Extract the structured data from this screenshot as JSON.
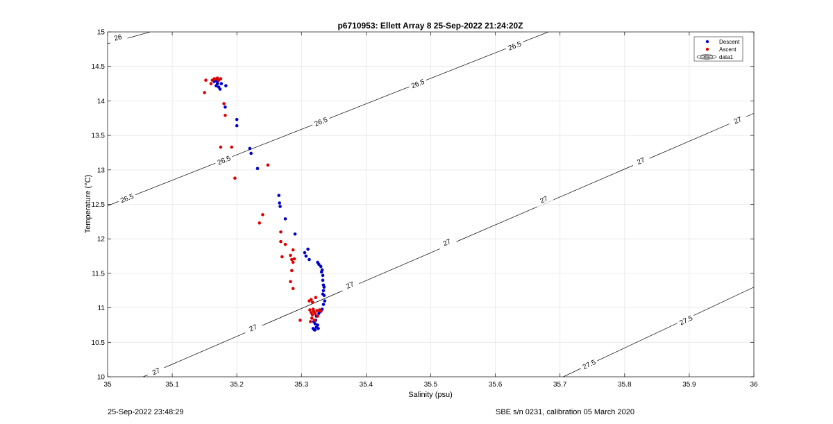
{
  "chart_data": {
    "type": "scatter",
    "title": "p6710953: Ellett Array 8 25-Sep-2022 21:24:20Z",
    "xlabel": "Salinity (psu)",
    "ylabel": "Temperature (°C)",
    "xlim": [
      35,
      36
    ],
    "ylim": [
      10,
      15
    ],
    "xticks": [
      "35",
      "35.1",
      "35.2",
      "35.3",
      "35.4",
      "35.5",
      "35.6",
      "35.7",
      "35.8",
      "35.9",
      "36"
    ],
    "yticks": [
      "10",
      "10.5",
      "11",
      "11.5",
      "12",
      "12.5",
      "13",
      "13.5",
      "14",
      "14.5",
      "15"
    ],
    "grid": true,
    "legend_position": "top-right",
    "legend": [
      "Descent",
      "Ascent",
      "data1"
    ],
    "series": [
      {
        "name": "Descent",
        "color": "#0000cc",
        "points": [
          [
            35.166,
            14.3
          ],
          [
            35.17,
            14.25
          ],
          [
            35.172,
            14.2
          ],
          [
            35.168,
            14.22
          ],
          [
            35.174,
            14.17
          ],
          [
            35.176,
            14.25
          ],
          [
            35.165,
            14.28
          ],
          [
            35.183,
            14.22
          ],
          [
            35.17,
            14.28
          ],
          [
            35.182,
            13.91
          ],
          [
            35.2,
            13.73
          ],
          [
            35.2,
            13.64
          ],
          [
            35.22,
            13.31
          ],
          [
            35.222,
            13.24
          ],
          [
            35.232,
            13.02
          ],
          [
            35.265,
            12.63
          ],
          [
            35.266,
            12.52
          ],
          [
            35.267,
            12.47
          ],
          [
            35.275,
            12.29
          ],
          [
            35.29,
            12.07
          ],
          [
            35.305,
            11.8
          ],
          [
            35.307,
            11.75
          ],
          [
            35.31,
            11.85
          ],
          [
            35.312,
            11.7
          ],
          [
            35.325,
            11.66
          ],
          [
            35.327,
            11.63
          ],
          [
            35.33,
            11.6
          ],
          [
            35.331,
            11.52
          ],
          [
            35.333,
            11.47
          ],
          [
            35.333,
            11.4
          ],
          [
            35.334,
            11.33
          ],
          [
            35.334,
            11.25
          ],
          [
            35.335,
            11.18
          ],
          [
            35.336,
            11.1
          ],
          [
            35.334,
            11.05
          ],
          [
            35.332,
            10.98
          ],
          [
            35.33,
            10.95
          ],
          [
            35.327,
            10.92
          ],
          [
            35.323,
            10.88
          ],
          [
            35.322,
            10.82
          ],
          [
            35.321,
            10.77
          ],
          [
            35.323,
            10.72
          ],
          [
            35.326,
            10.7
          ],
          [
            35.321,
            10.68
          ],
          [
            35.318,
            10.7
          ],
          [
            35.325,
            10.75
          ],
          [
            35.319,
            10.8
          ],
          [
            35.329,
            10.95
          ],
          [
            35.333,
            11.2
          ],
          [
            35.335,
            11.3
          ],
          [
            35.332,
            11.55
          ],
          [
            35.32,
            10.68
          ]
        ]
      },
      {
        "name": "Ascent",
        "color": "#dd0000",
        "points": [
          [
            35.152,
            14.3
          ],
          [
            35.15,
            14.12
          ],
          [
            35.162,
            14.3
          ],
          [
            35.165,
            14.32
          ],
          [
            35.168,
            14.32
          ],
          [
            35.17,
            14.33
          ],
          [
            35.172,
            14.3
          ],
          [
            35.175,
            14.32
          ],
          [
            35.16,
            14.25
          ],
          [
            35.18,
            13.96
          ],
          [
            35.182,
            13.79
          ],
          [
            35.175,
            13.33
          ],
          [
            35.192,
            13.33
          ],
          [
            35.248,
            13.07
          ],
          [
            35.197,
            12.88
          ],
          [
            35.24,
            12.35
          ],
          [
            35.235,
            12.23
          ],
          [
            35.268,
            12.1
          ],
          [
            35.268,
            11.96
          ],
          [
            35.275,
            11.92
          ],
          [
            35.27,
            11.74
          ],
          [
            35.283,
            11.76
          ],
          [
            35.285,
            11.7
          ],
          [
            35.287,
            11.66
          ],
          [
            35.289,
            11.71
          ],
          [
            35.287,
            11.84
          ],
          [
            35.285,
            11.54
          ],
          [
            35.283,
            11.38
          ],
          [
            35.287,
            11.28
          ],
          [
            35.312,
            11.1
          ],
          [
            35.315,
            11.12
          ],
          [
            35.317,
            11.08
          ],
          [
            35.322,
            11.15
          ],
          [
            35.313,
            10.97
          ],
          [
            35.315,
            10.93
          ],
          [
            35.317,
            10.9
          ],
          [
            35.319,
            10.95
          ],
          [
            35.321,
            10.92
          ],
          [
            35.324,
            10.96
          ],
          [
            35.328,
            10.97
          ],
          [
            35.33,
            10.95
          ],
          [
            35.316,
            10.85
          ],
          [
            35.32,
            10.82
          ],
          [
            35.314,
            10.8
          ],
          [
            35.298,
            10.82
          ],
          [
            35.325,
            10.88
          ],
          [
            35.318,
            10.98
          ]
        ]
      }
    ],
    "contours": [
      {
        "level": "26",
        "color": "#000000",
        "from": [
          34.989,
          14.8
        ],
        "to": [
          35.066,
          15.0
        ],
        "labels": [
          [
            35.016,
            14.92
          ]
        ]
      },
      {
        "level": "26.5",
        "color": "#000000",
        "from": [
          35.0,
          12.48
        ],
        "to": [
          35.682,
          15.0
        ],
        "labels": [
          [
            35.03,
            12.59
          ],
          [
            35.18,
            13.14
          ],
          [
            35.33,
            13.7
          ],
          [
            35.48,
            14.25
          ],
          [
            35.63,
            14.8
          ]
        ]
      },
      {
        "level": "27",
        "color": "#000000",
        "from": [
          35.055,
          10.0
        ],
        "to": [
          36.0,
          13.82
        ],
        "labels": [
          [
            35.075,
            10.08
          ],
          [
            35.225,
            10.71
          ],
          [
            35.375,
            11.33
          ],
          [
            35.525,
            11.95
          ],
          [
            35.675,
            12.57
          ],
          [
            35.825,
            13.13
          ],
          [
            35.975,
            13.72
          ]
        ]
      },
      {
        "level": "27.5",
        "color": "#000000",
        "from": [
          35.705,
          10.0
        ],
        "to": [
          36.0,
          11.3
        ],
        "labels": [
          [
            35.745,
            10.18
          ],
          [
            35.895,
            10.82
          ]
        ]
      }
    ]
  },
  "footer": {
    "timestamp": "25-Sep-2022 23:48:29",
    "sensor": "SBE s/n 0231, calibration 05 March 2020"
  }
}
